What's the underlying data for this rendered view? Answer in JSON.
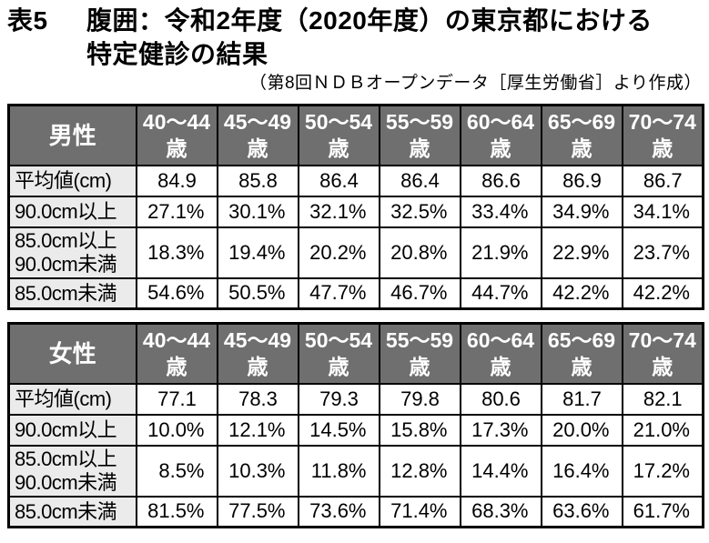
{
  "page": {
    "title_label": "表5",
    "title_line1": "腹囲：令和2年度（2020年度）の東京都における",
    "title_line2": "特定健診の結果",
    "source": "（第8回ＮＤＢオープンデータ［厚生労働省］より作成）"
  },
  "colors": {
    "header_bg": "#6f6f6f",
    "header_text": "#ffffff",
    "row_label_bg": "#ebebeb",
    "border": "#000000",
    "text": "#000000",
    "background": "#ffffff"
  },
  "tables": [
    {
      "group_label": "男性",
      "age_columns": [
        "40〜44\n歳",
        "45〜49\n歳",
        "50〜54\n歳",
        "55〜59\n歳",
        "60〜64\n歳",
        "65〜69\n歳",
        "70〜74\n歳"
      ],
      "rows": [
        {
          "label": "平均値(cm)",
          "values": [
            "84.9",
            "85.8",
            "86.4",
            "86.4",
            "86.6",
            "86.9",
            "86.7"
          ]
        },
        {
          "label": "90.0cm以上",
          "values": [
            "27.1%",
            "30.1%",
            "32.1%",
            "32.5%",
            "33.4%",
            "34.9%",
            "34.1%"
          ]
        },
        {
          "label": "85.0cm以上\n90.0cm未満",
          "values": [
            "18.3%",
            "19.4%",
            "20.2%",
            "20.8%",
            "21.9%",
            "22.9%",
            "23.7%"
          ]
        },
        {
          "label": "85.0cm未満",
          "values": [
            "54.6%",
            "50.5%",
            "47.7%",
            "46.7%",
            "44.7%",
            "42.2%",
            "42.2%"
          ]
        }
      ]
    },
    {
      "group_label": "女性",
      "age_columns": [
        "40〜44\n歳",
        "45〜49\n歳",
        "50〜54\n歳",
        "55〜59\n歳",
        "60〜64\n歳",
        "65〜69\n歳",
        "70〜74\n歳"
      ],
      "rows": [
        {
          "label": "平均値(cm)",
          "values": [
            "77.1",
            "78.3",
            "79.3",
            "79.8",
            "80.6",
            "81.7",
            "82.1"
          ]
        },
        {
          "label": "90.0cm以上",
          "values": [
            "10.0%",
            "12.1%",
            "14.5%",
            "15.8%",
            "17.3%",
            "20.0%",
            "21.0%"
          ]
        },
        {
          "label": "85.0cm以上\n90.0cm未満",
          "values": [
            "8.5%",
            "10.3%",
            "11.8%",
            "12.8%",
            "14.4%",
            "16.4%",
            "17.2%"
          ]
        },
        {
          "label": "85.0cm未満",
          "values": [
            "81.5%",
            "77.5%",
            "73.6%",
            "71.4%",
            "68.3%",
            "63.6%",
            "61.7%"
          ]
        }
      ]
    }
  ]
}
